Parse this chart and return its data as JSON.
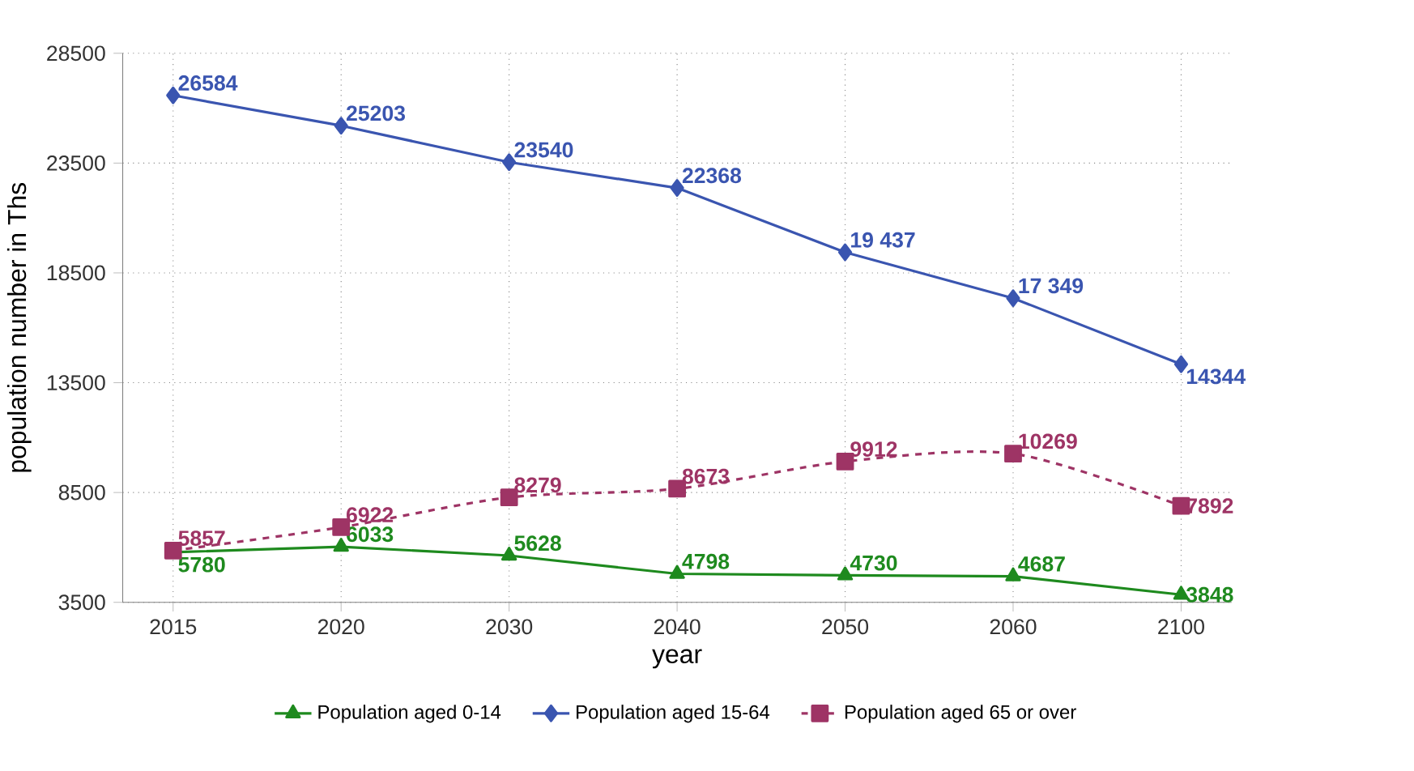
{
  "chart_data": {
    "type": "line",
    "xlabel": "year",
    "ylabel": "population number in Ths",
    "categories": [
      "2015",
      "2020",
      "2030",
      "2040",
      "2050",
      "2060",
      "2100"
    ],
    "ylim": [
      3500,
      28500
    ],
    "yticks": [
      3500,
      8500,
      13500,
      18500,
      23500,
      28500
    ],
    "grid": true,
    "legend": "bottom",
    "series": [
      {
        "name": "Population aged 0-14",
        "color": "#1e8a1e",
        "marker": "triangle",
        "line_style": "solid",
        "values": [
          5780,
          6033,
          5628,
          4798,
          4730,
          4687,
          3848
        ],
        "value_labels": [
          "5780",
          "6033",
          "5628",
          "4798",
          "4730",
          "4687",
          "3848"
        ]
      },
      {
        "name": "Population aged 15-64",
        "color": "#3a55b0",
        "marker": "diamond",
        "line_style": "solid",
        "values": [
          26584,
          25203,
          23540,
          22368,
          19437,
          17349,
          14344
        ],
        "value_labels": [
          "26584",
          "25203",
          "23540",
          "22368",
          "19 437",
          "17 349",
          "14344"
        ]
      },
      {
        "name": "Population aged 65 or over",
        "color": "#9e3465",
        "marker": "square",
        "line_style": "dashed",
        "values": [
          5857,
          6922,
          8279,
          8673,
          9912,
          10269,
          7892
        ],
        "value_labels": [
          "5857",
          "6922",
          "8279",
          "8673",
          "9912",
          "10269",
          "7892"
        ]
      }
    ]
  }
}
